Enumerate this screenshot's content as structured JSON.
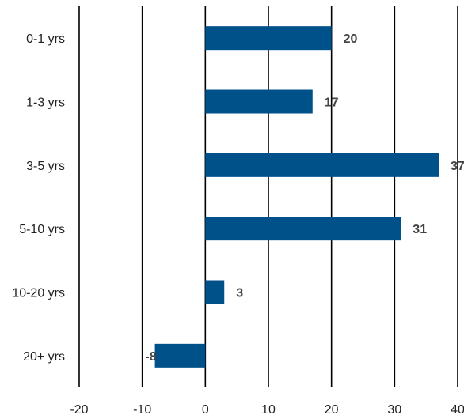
{
  "chart_data": {
    "type": "bar",
    "orientation": "horizontal",
    "categories": [
      "0-1 yrs",
      "1-3 yrs",
      "3-5 yrs",
      "5-10 yrs",
      "10-20 yrs",
      "20+ yrs"
    ],
    "values": [
      20,
      17,
      37,
      31,
      3,
      -8
    ],
    "data_labels": [
      "20",
      "17",
      "37",
      "31",
      "3",
      "-8"
    ],
    "x_ticks": [
      "-20",
      "-10",
      "0",
      "10",
      "20",
      "30",
      "40"
    ],
    "xlim": [
      -20,
      40
    ],
    "grid": true,
    "bar_color": "#00508a",
    "title": "",
    "xlabel": "",
    "ylabel": ""
  }
}
